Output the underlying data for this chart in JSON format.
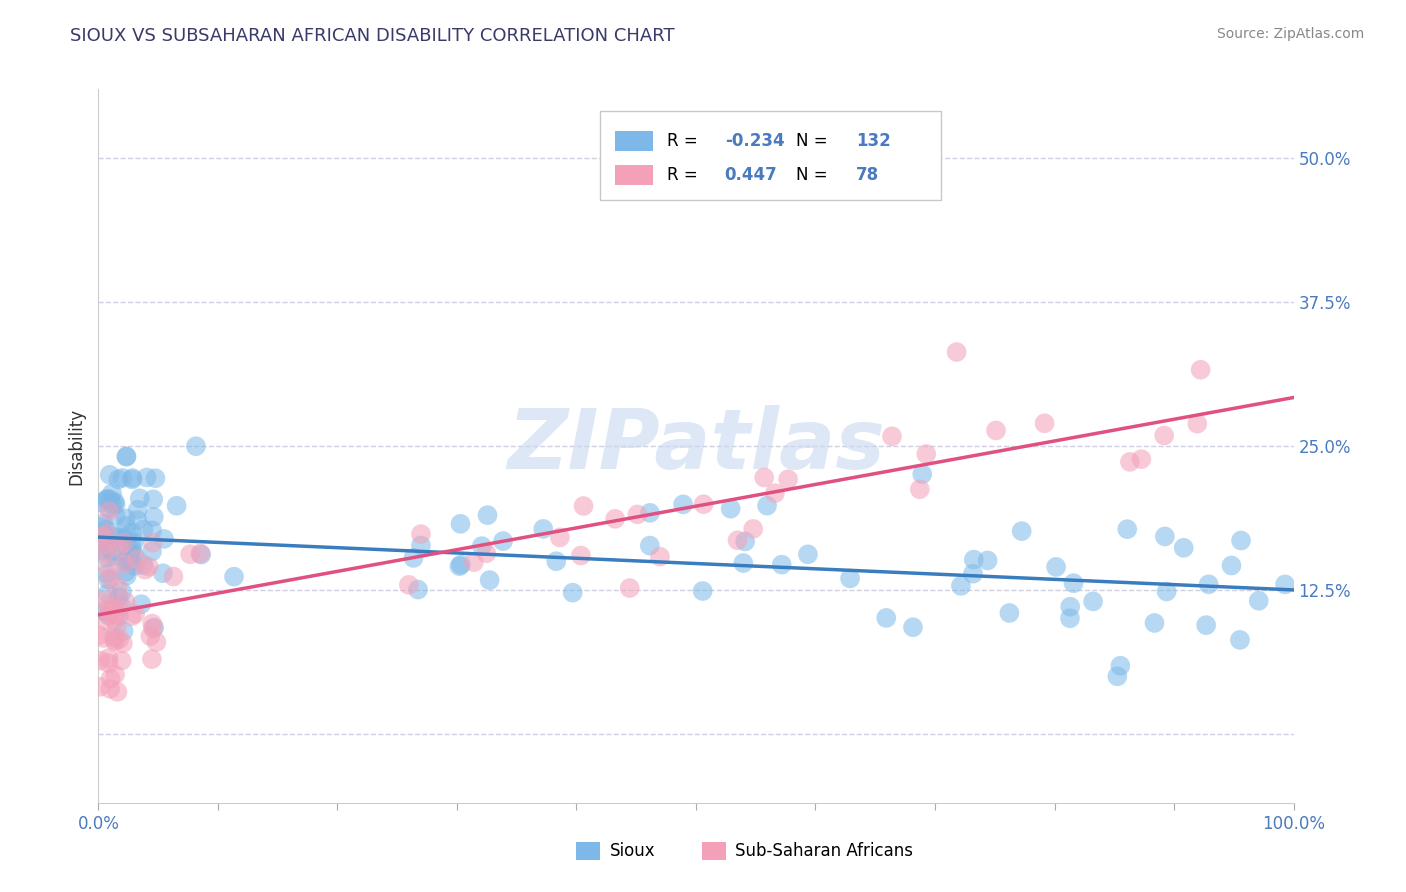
{
  "title": "SIOUX VS SUBSAHARAN AFRICAN DISABILITY CORRELATION CHART",
  "source": "Source: ZipAtlas.com",
  "ylabel": "Disability",
  "yticks": [
    0.0,
    0.125,
    0.25,
    0.375,
    0.5
  ],
  "ytick_labels": [
    "",
    "12.5%",
    "25.0%",
    "37.5%",
    "50.0%"
  ],
  "xlim": [
    0.0,
    1.0
  ],
  "ylim": [
    -0.06,
    0.56
  ],
  "sioux_R": -0.234,
  "sioux_N": 132,
  "subsaharan_R": 0.447,
  "subsaharan_N": 78,
  "sioux_color": "#7db8e8",
  "subsaharan_color": "#f4a0b8",
  "line_sioux_color": "#3a7dbf",
  "line_subsaharan_color": "#e05080",
  "title_color": "#3a3a6a",
  "tick_color": "#4a7abf",
  "label_color": "#333333",
  "watermark_color": "#c8d8f0",
  "watermark": "ZIPatlas",
  "legend_label_sioux": "Sioux",
  "legend_label_subsaharan": "Sub-Saharan Africans",
  "background_color": "#ffffff",
  "grid_color": "#d0d0e0",
  "source_color": "#888888"
}
